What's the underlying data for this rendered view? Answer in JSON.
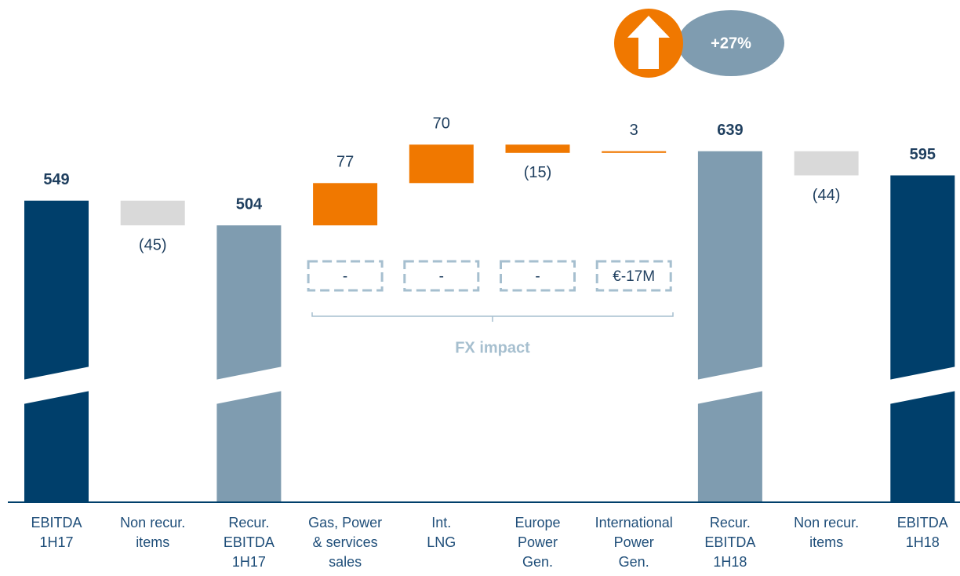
{
  "chart_data": {
    "type": "waterfall",
    "categories": [
      [
        "EBITDA",
        "1H17"
      ],
      [
        "Non recur.",
        "items"
      ],
      [
        "Recur.",
        "EBITDA",
        "1H17"
      ],
      [
        "Gas, Power",
        "& services",
        "sales"
      ],
      [
        "Int.",
        "LNG"
      ],
      [
        "Europe",
        "Power",
        "Gen."
      ],
      [
        "International",
        "Power",
        "Gen."
      ],
      [
        "Recur.",
        "EBITDA",
        "1H18"
      ],
      [
        "Non recur.",
        "items"
      ],
      [
        "EBITDA",
        "1H18"
      ]
    ],
    "values": [
      549,
      -45,
      504,
      77,
      70,
      -15,
      3,
      639,
      -44,
      595
    ],
    "value_labels": [
      "549",
      "(45)",
      "504",
      "77",
      "70",
      "(15)",
      "3",
      "639",
      "(44)",
      "595"
    ],
    "measure": [
      "absolute",
      "relative",
      "absolute",
      "relative",
      "relative",
      "relative",
      "relative",
      "absolute",
      "relative",
      "absolute"
    ],
    "colors": [
      "#003f6b",
      "#d9d9d9",
      "#7f9cb0",
      "#f07800",
      "#f07800",
      "#f07800",
      "#f07800",
      "#7f9cb0",
      "#d9d9d9",
      "#003f6b"
    ],
    "ylim": [
      0,
      900
    ],
    "growth": "+27%",
    "fx_label": "FX impact",
    "fx_values": [
      "-",
      "-",
      "-",
      "€-17M"
    ]
  }
}
